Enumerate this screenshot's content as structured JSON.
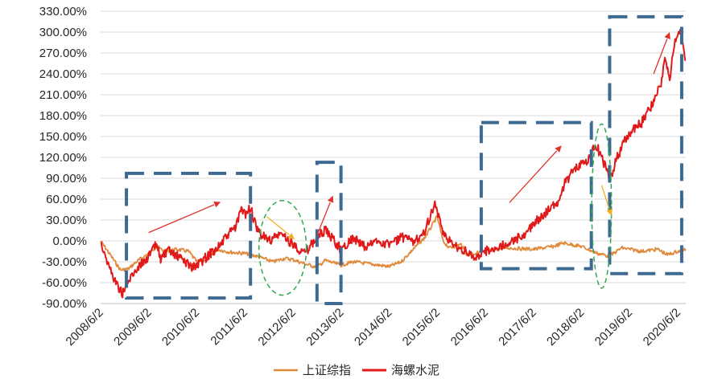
{
  "chart_data": {
    "type": "line",
    "title": "",
    "xlabel": "",
    "ylabel": "",
    "ylim": [
      -90,
      330
    ],
    "yticks": [
      "330.00%",
      "300.00%",
      "270.00%",
      "240.00%",
      "210.00%",
      "180.00%",
      "150.00%",
      "120.00%",
      "90.00%",
      "60.00%",
      "30.00%",
      "0.00%",
      "-30.00%",
      "-60.00%",
      "-90.00%"
    ],
    "ytick_values": [
      330,
      300,
      270,
      240,
      210,
      180,
      150,
      120,
      90,
      60,
      30,
      0,
      -30,
      -60,
      -90
    ],
    "xticks": [
      "2008/6/2",
      "2009/6/2",
      "2010/6/2",
      "2011/6/2",
      "2012/6/2",
      "2013/6/2",
      "2014/6/2",
      "2015/6/2",
      "2016/6/2",
      "2017/6/2",
      "2018/6/2",
      "2019/6/2",
      "2020/6/2"
    ],
    "x_range": [
      "2008/6/2",
      "2020/8/1"
    ],
    "grid": "horizontal",
    "legend_position": "bottom",
    "series": [
      {
        "name": "上证综指",
        "color": "#e08a3c",
        "points": [
          [
            "2008/6/2",
            0
          ],
          [
            "2008/9/1",
            -25
          ],
          [
            "2008/11/1",
            -42
          ],
          [
            "2009/1/1",
            -40
          ],
          [
            "2009/3/1",
            -30
          ],
          [
            "2009/6/2",
            -18
          ],
          [
            "2009/8/1",
            -8
          ],
          [
            "2009/10/1",
            -15
          ],
          [
            "2010/1/1",
            -12
          ],
          [
            "2010/4/1",
            -15
          ],
          [
            "2010/6/2",
            -30
          ],
          [
            "2010/9/1",
            -25
          ],
          [
            "2010/11/1",
            -12
          ],
          [
            "2011/2/1",
            -16
          ],
          [
            "2011/6/2",
            -18
          ],
          [
            "2011/9/1",
            -22
          ],
          [
            "2012/1/1",
            -30
          ],
          [
            "2012/4/1",
            -25
          ],
          [
            "2012/6/2",
            -27
          ],
          [
            "2012/9/1",
            -33
          ],
          [
            "2012/12/1",
            -38
          ],
          [
            "2013/2/1",
            -28
          ],
          [
            "2013/6/2",
            -35
          ],
          [
            "2013/9/1",
            -30
          ],
          [
            "2014/1/1",
            -33
          ],
          [
            "2014/6/2",
            -37
          ],
          [
            "2014/9/1",
            -30
          ],
          [
            "2014/12/1",
            -12
          ],
          [
            "2015/3/1",
            5
          ],
          [
            "2015/6/2",
            35
          ],
          [
            "2015/7/15",
            0
          ],
          [
            "2015/9/1",
            -10
          ],
          [
            "2015/12/1",
            -5
          ],
          [
            "2016/1/15",
            -20
          ],
          [
            "2016/6/2",
            -15
          ],
          [
            "2016/11/1",
            -10
          ],
          [
            "2017/6/2",
            -12
          ],
          [
            "2017/11/1",
            -8
          ],
          [
            "2018/1/15",
            -3
          ],
          [
            "2018/6/2",
            -8
          ],
          [
            "2018/10/1",
            -18
          ],
          [
            "2019/1/1",
            -22
          ],
          [
            "2019/4/1",
            -10
          ],
          [
            "2019/6/2",
            -12
          ],
          [
            "2019/9/1",
            -15
          ],
          [
            "2020/1/1",
            -12
          ],
          [
            "2020/3/15",
            -20
          ],
          [
            "2020/6/2",
            -15
          ],
          [
            "2020/8/1",
            -12
          ]
        ]
      },
      {
        "name": "海螺水泥",
        "color": "#e01a1a",
        "points": [
          [
            "2008/6/2",
            0
          ],
          [
            "2008/8/1",
            -35
          ],
          [
            "2008/10/1",
            -62
          ],
          [
            "2008/11/15",
            -75
          ],
          [
            "2009/1/1",
            -58
          ],
          [
            "2009/3/1",
            -40
          ],
          [
            "2009/6/2",
            -22
          ],
          [
            "2009/8/1",
            -5
          ],
          [
            "2009/9/1",
            -25
          ],
          [
            "2009/11/1",
            -15
          ],
          [
            "2010/2/1",
            -25
          ],
          [
            "2010/5/1",
            -38
          ],
          [
            "2010/6/2",
            -36
          ],
          [
            "2010/9/1",
            -20
          ],
          [
            "2010/12/1",
            -5
          ],
          [
            "2011/2/1",
            10
          ],
          [
            "2011/4/1",
            22
          ],
          [
            "2011/5/1",
            45
          ],
          [
            "2011/6/2",
            38
          ],
          [
            "2011/7/15",
            48
          ],
          [
            "2011/9/1",
            15
          ],
          [
            "2011/12/1",
            0
          ],
          [
            "2012/3/1",
            10
          ],
          [
            "2012/6/2",
            -5
          ],
          [
            "2012/9/1",
            -18
          ],
          [
            "2012/12/1",
            5
          ],
          [
            "2013/2/1",
            15
          ],
          [
            "2013/6/2",
            -12
          ],
          [
            "2013/9/1",
            5
          ],
          [
            "2013/12/1",
            -10
          ],
          [
            "2014/3/1",
            0
          ],
          [
            "2014/6/2",
            -5
          ],
          [
            "2014/9/1",
            5
          ],
          [
            "2014/12/1",
            -2
          ],
          [
            "2015/3/1",
            15
          ],
          [
            "2015/5/15",
            55
          ],
          [
            "2015/6/2",
            40
          ],
          [
            "2015/7/15",
            10
          ],
          [
            "2015/10/1",
            -5
          ],
          [
            "2016/1/1",
            -15
          ],
          [
            "2016/3/1",
            -25
          ],
          [
            "2016/6/2",
            -15
          ],
          [
            "2016/10/1",
            -8
          ],
          [
            "2017/1/1",
            0
          ],
          [
            "2017/4/1",
            10
          ],
          [
            "2017/6/2",
            25
          ],
          [
            "2017/9/1",
            40
          ],
          [
            "2017/12/1",
            55
          ],
          [
            "2018/2/1",
            85
          ],
          [
            "2018/4/1",
            100
          ],
          [
            "2018/6/2",
            110
          ],
          [
            "2018/8/1",
            118
          ],
          [
            "2018/9/15",
            140
          ],
          [
            "2018/11/1",
            120
          ],
          [
            "2019/1/1",
            88
          ],
          [
            "2019/3/1",
            120
          ],
          [
            "2019/4/15",
            140
          ],
          [
            "2019/6/2",
            155
          ],
          [
            "2019/9/1",
            170
          ],
          [
            "2019/12/1",
            200
          ],
          [
            "2020/2/1",
            230
          ],
          [
            "2020/3/1",
            265
          ],
          [
            "2020/4/1",
            225
          ],
          [
            "2020/5/1",
            280
          ],
          [
            "2020/6/2",
            290
          ],
          [
            "2020/6/25",
            305
          ],
          [
            "2020/7/15",
            275
          ],
          [
            "2020/8/1",
            260
          ]
        ]
      }
    ],
    "annotations": {
      "dashed_boxes": [
        {
          "from": "2008/12/15",
          "to": "2011/7/15",
          "y_top": 97,
          "y_bottom": -82
        },
        {
          "from": "2012/12/1",
          "to": "2013/6/1",
          "y_top": 113,
          "y_bottom": -90
        },
        {
          "from": "2016/5/1",
          "to": "2018/8/15",
          "y_top": 170,
          "y_bottom": -40
        },
        {
          "from": "2019/1/1",
          "to": "2020/7/1",
          "y_top": 322,
          "y_bottom": -47
        }
      ],
      "ellipses": [
        {
          "center": "2012/3/15",
          "y_center": -10,
          "rx_days": 180,
          "ry": 68
        },
        {
          "center": "2018/11/1",
          "y_center": 50,
          "rx_days": 75,
          "ry": 118
        }
      ],
      "arrows": [
        {
          "color": "#e0302b",
          "from": [
            "2009/6/2",
            12
          ],
          "to": [
            "2010/12/1",
            56
          ]
        },
        {
          "color": "#f0b020",
          "from": [
            "2011/11/15",
            35
          ],
          "to": [
            "2012/6/15",
            2
          ]
        },
        {
          "color": "#e0302b",
          "from": [
            "2012/12/1",
            8
          ],
          "to": [
            "2013/4/1",
            65
          ]
        },
        {
          "color": "#e0302b",
          "from": [
            "2016/12/1",
            55
          ],
          "to": [
            "2018/1/1",
            137
          ]
        },
        {
          "color": "#f0b020",
          "from": [
            "2018/11/1",
            80
          ],
          "to": [
            "2019/1/15",
            36
          ]
        },
        {
          "color": "#e0302b",
          "from": [
            "2019/12/1",
            240
          ],
          "to": [
            "2020/4/1",
            300
          ]
        }
      ]
    }
  }
}
